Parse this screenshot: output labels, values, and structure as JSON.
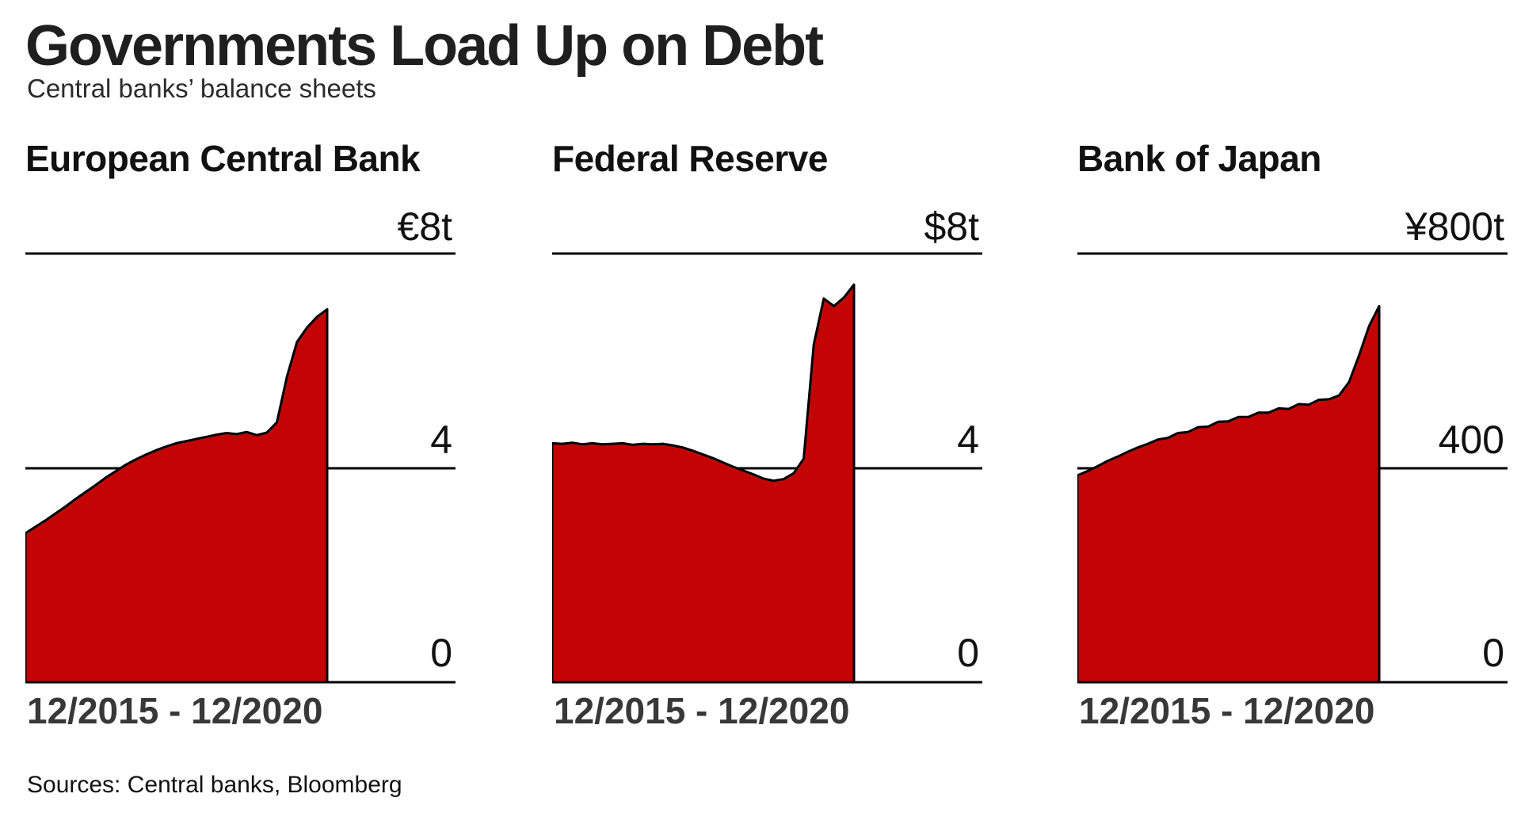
{
  "header": {
    "title": "Governments Load Up on Debt",
    "subtitle": "Central banks’ balance sheets"
  },
  "footer": {
    "sources": "Sources: Central banks, Bloomberg"
  },
  "style": {
    "area_fill_color": "#c40404",
    "line_color": "#000000",
    "x_label_color": "#383838"
  },
  "chart_data": [
    {
      "type": "area",
      "title": "European Central Bank",
      "unit": "trillions EUR",
      "x_label": "12/2015 - 12/2020",
      "x_range": [
        "12/2015",
        "12/2020"
      ],
      "ylim": [
        0,
        8
      ],
      "yticks": [
        0,
        4,
        8
      ],
      "ytick_labels": [
        "0",
        "4",
        "€8t"
      ],
      "grid": "horizontal-ticks-only",
      "legend": "none",
      "values": [
        2.78,
        2.9,
        3.02,
        3.15,
        3.28,
        3.42,
        3.55,
        3.68,
        3.82,
        3.94,
        4.06,
        4.16,
        4.25,
        4.33,
        4.4,
        4.46,
        4.5,
        4.54,
        4.58,
        4.62,
        4.65,
        4.63,
        4.67,
        4.61,
        4.66,
        4.85,
        5.7,
        6.35,
        6.62,
        6.82,
        6.96
      ]
    },
    {
      "type": "area",
      "title": "Federal Reserve",
      "unit": "trillions USD",
      "x_label": "12/2015 - 12/2020",
      "x_range": [
        "12/2015",
        "12/2020"
      ],
      "ylim": [
        0,
        8
      ],
      "yticks": [
        0,
        4,
        8
      ],
      "ytick_labels": [
        "0",
        "4",
        "$8t"
      ],
      "grid": "horizontal-ticks-only",
      "legend": "none",
      "values": [
        4.46,
        4.45,
        4.47,
        4.44,
        4.46,
        4.44,
        4.45,
        4.46,
        4.43,
        4.45,
        4.44,
        4.45,
        4.42,
        4.38,
        4.32,
        4.25,
        4.18,
        4.1,
        4.02,
        3.95,
        3.88,
        3.8,
        3.76,
        3.79,
        3.9,
        4.17,
        6.3,
        7.16,
        7.02,
        7.18,
        7.42
      ]
    },
    {
      "type": "area",
      "title": "Bank of Japan",
      "unit": "trillions JPY",
      "x_label": "12/2015 - 12/2020",
      "x_range": [
        "12/2015",
        "12/2020"
      ],
      "ylim": [
        0,
        800
      ],
      "yticks": [
        0,
        400,
        800
      ],
      "ytick_labels": [
        "0",
        "400",
        "¥800t"
      ],
      "grid": "horizontal-ticks-only",
      "legend": "none",
      "values": [
        386,
        394,
        403,
        413,
        421,
        430,
        438,
        445,
        453,
        456,
        465,
        467,
        476,
        477,
        486,
        487,
        495,
        495,
        503,
        503,
        511,
        510,
        519,
        518,
        527,
        528,
        535,
        560,
        610,
        665,
        702
      ]
    }
  ]
}
